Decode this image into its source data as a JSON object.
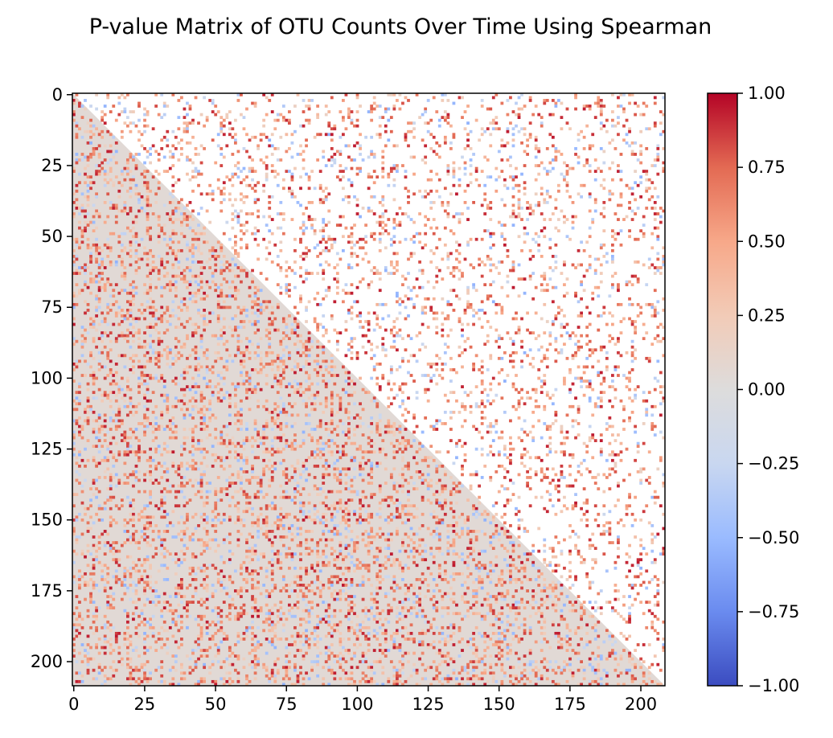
{
  "chart_data": {
    "type": "heatmap",
    "title": "P-value Matrix of OTU Counts Over Time Using Spearman",
    "xlabel": "",
    "ylabel": "",
    "matrix_size": 209,
    "x_ticks": [
      0,
      25,
      50,
      75,
      100,
      125,
      150,
      175,
      200
    ],
    "y_ticks": [
      0,
      25,
      50,
      75,
      100,
      125,
      150,
      175,
      200
    ],
    "x_tick_labels": [
      "0",
      "25",
      "50",
      "75",
      "100",
      "125",
      "150",
      "175",
      "200"
    ],
    "y_tick_labels": [
      "0",
      "25",
      "50",
      "75",
      "100",
      "125",
      "150",
      "175",
      "200"
    ],
    "colormap": "coolwarm",
    "vmin": -1.0,
    "vmax": 1.0,
    "colorbar_ticks": [
      1.0,
      0.75,
      0.5,
      0.25,
      0.0,
      -0.25,
      -0.5,
      -0.75,
      -1.0
    ],
    "colorbar_tick_labels": [
      "1.00",
      "0.75",
      "0.50",
      "0.25",
      "0.00",
      "−0.25",
      "−0.50",
      "−0.75",
      "−1.00"
    ],
    "lower_triangle_base_value": 0.05,
    "upper_triangle_background": "white",
    "grid": false,
    "legend": "colorbar-right"
  },
  "colors": {
    "coolwarm_stops": [
      "#3b4cc0",
      "#6a8bef",
      "#9abbff",
      "#c9d7f0",
      "#dddcdc",
      "#f2cbb7",
      "#f7a889",
      "#e36a53",
      "#b40426"
    ],
    "axis": "#000000",
    "background": "#ffffff"
  }
}
